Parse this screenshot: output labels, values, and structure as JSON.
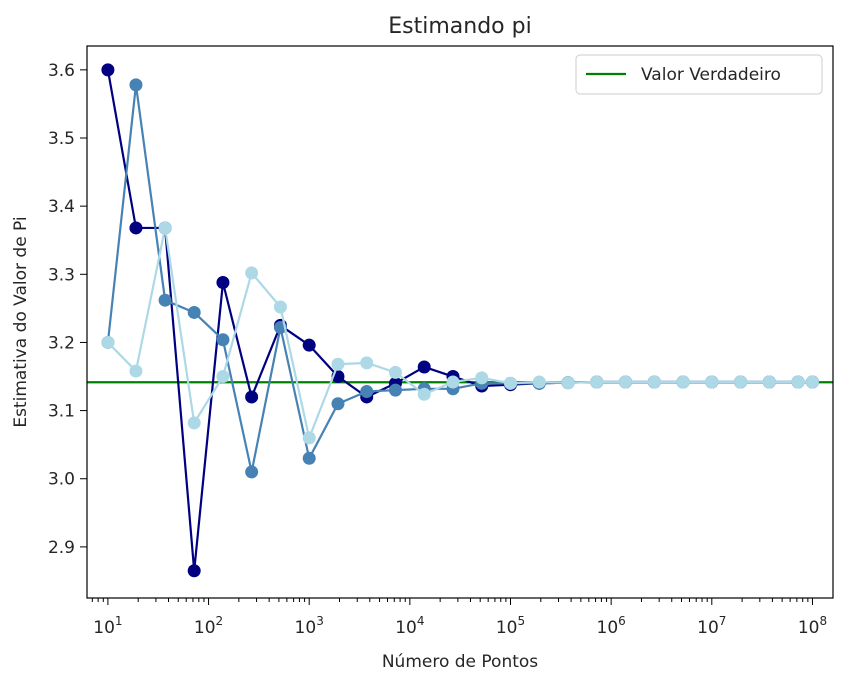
{
  "chart_data": {
    "type": "line",
    "title": "Estimando pi",
    "xlabel": "Número de Pontos",
    "ylabel": "Estimativa do Valor de Pi",
    "x_scale": "log",
    "xlim": [
      6.2,
      160000000
    ],
    "ylim": [
      2.825,
      3.635
    ],
    "x_tick_exponents": [
      1,
      2,
      3,
      4,
      5,
      6,
      7,
      8
    ],
    "x_tick_base": "10",
    "y_ticks": [
      2.9,
      3.0,
      3.1,
      3.2,
      3.3,
      3.4,
      3.5,
      3.6
    ],
    "grid": false,
    "legend_position": "top-right",
    "x": [
      10,
      19,
      37,
      72,
      139,
      268,
      518,
      1000,
      1931,
      3728,
      7197,
      13895,
      26827,
      51795,
      100000,
      193069,
      372759,
      719686,
      1389495,
      2682696,
      5179475,
      10000000,
      19306977,
      37275937,
      71968567,
      100000000
    ],
    "reference_line": {
      "name": "Valor Verdadeiro",
      "y": 3.14159,
      "color": "#008000"
    },
    "series": [
      {
        "color": "#000080",
        "values": [
          3.6,
          3.368,
          3.368,
          2.865,
          3.288,
          3.12,
          3.225,
          3.196,
          3.15,
          3.12,
          3.14,
          3.164,
          3.15,
          3.136,
          3.138,
          3.14,
          3.141,
          3.142,
          3.142,
          3.142,
          3.142,
          3.142,
          3.142,
          3.142,
          3.142,
          3.142
        ]
      },
      {
        "color": "#4682B4",
        "values": [
          3.2,
          3.578,
          3.262,
          3.244,
          3.204,
          3.01,
          3.222,
          3.03,
          3.11,
          3.128,
          3.13,
          3.132,
          3.132,
          3.14,
          3.14,
          3.14,
          3.141,
          3.142,
          3.142,
          3.142,
          3.142,
          3.142,
          3.142,
          3.142,
          3.142,
          3.142
        ]
      },
      {
        "color": "#ADD8E6",
        "values": [
          3.2,
          3.158,
          3.368,
          3.082,
          3.15,
          3.302,
          3.252,
          3.06,
          3.168,
          3.17,
          3.156,
          3.124,
          3.142,
          3.148,
          3.14,
          3.142,
          3.141,
          3.142,
          3.142,
          3.142,
          3.142,
          3.142,
          3.142,
          3.142,
          3.142,
          3.142
        ]
      }
    ]
  }
}
